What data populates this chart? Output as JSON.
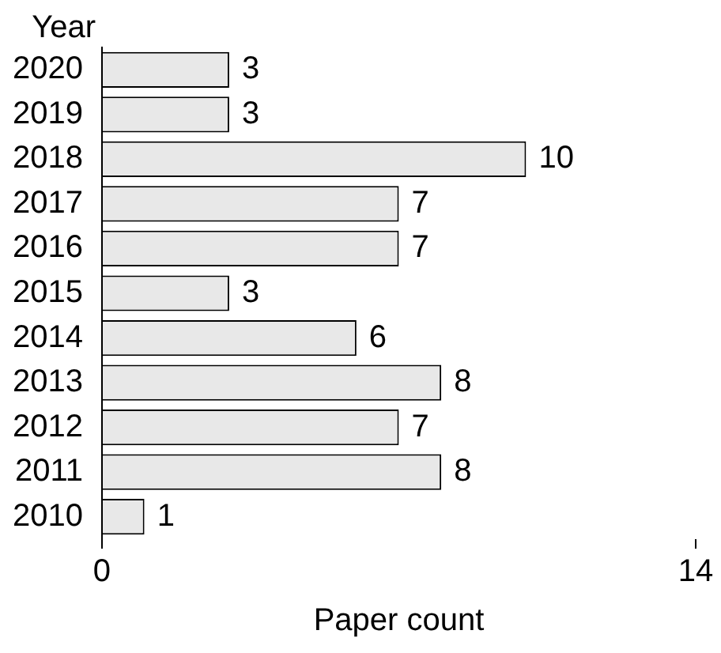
{
  "chart_data": {
    "type": "bar",
    "orientation": "horizontal",
    "ylabel": "Year",
    "xlabel": "Paper count",
    "categories": [
      "2020",
      "2019",
      "2018",
      "2017",
      "2016",
      "2015",
      "2014",
      "2013",
      "2012",
      "2011",
      "2010"
    ],
    "values": [
      3,
      3,
      10,
      7,
      7,
      3,
      6,
      8,
      7,
      8,
      1
    ],
    "color": "#e8e8e8",
    "xlim": [
      0,
      14
    ],
    "xticks": [
      0,
      14
    ],
    "data_labels": true,
    "grid": false,
    "legend": false
  }
}
